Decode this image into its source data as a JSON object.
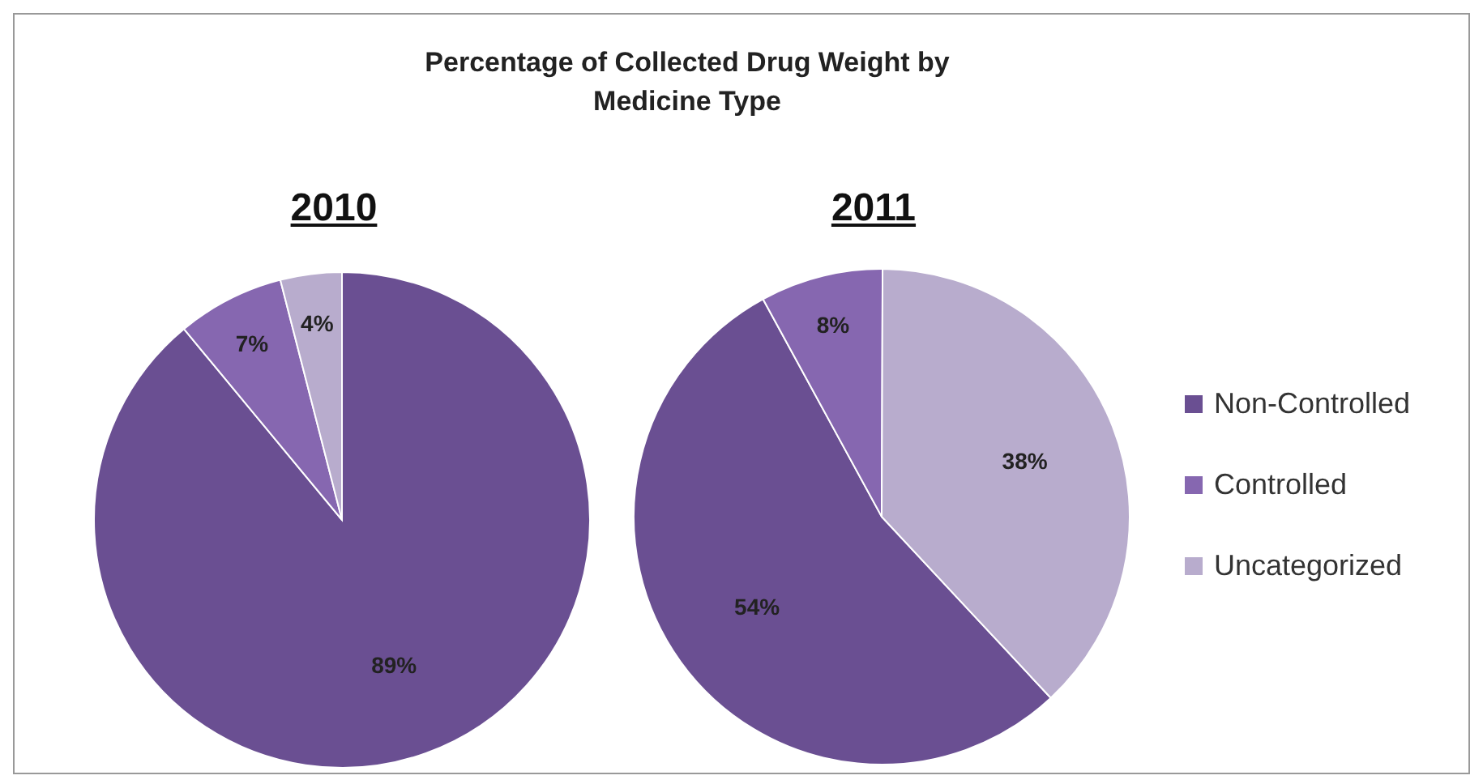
{
  "chart_data": {
    "type": "pie",
    "title": "Percentage of Collected Drug Weight by Medicine Type",
    "categories": [
      "Non-Controlled",
      "Controlled",
      "Uncategorized"
    ],
    "colors": [
      "#6a4f92",
      "#8667b0",
      "#b8accd"
    ],
    "legend": "right",
    "series": [
      {
        "name": "2010",
        "values": [
          89,
          7,
          4
        ],
        "value_labels": [
          "89%",
          "7%",
          "4%"
        ]
      },
      {
        "name": "2011",
        "values": [
          54,
          8,
          38
        ],
        "value_labels": [
          "54%",
          "8%",
          "38%"
        ]
      }
    ]
  }
}
